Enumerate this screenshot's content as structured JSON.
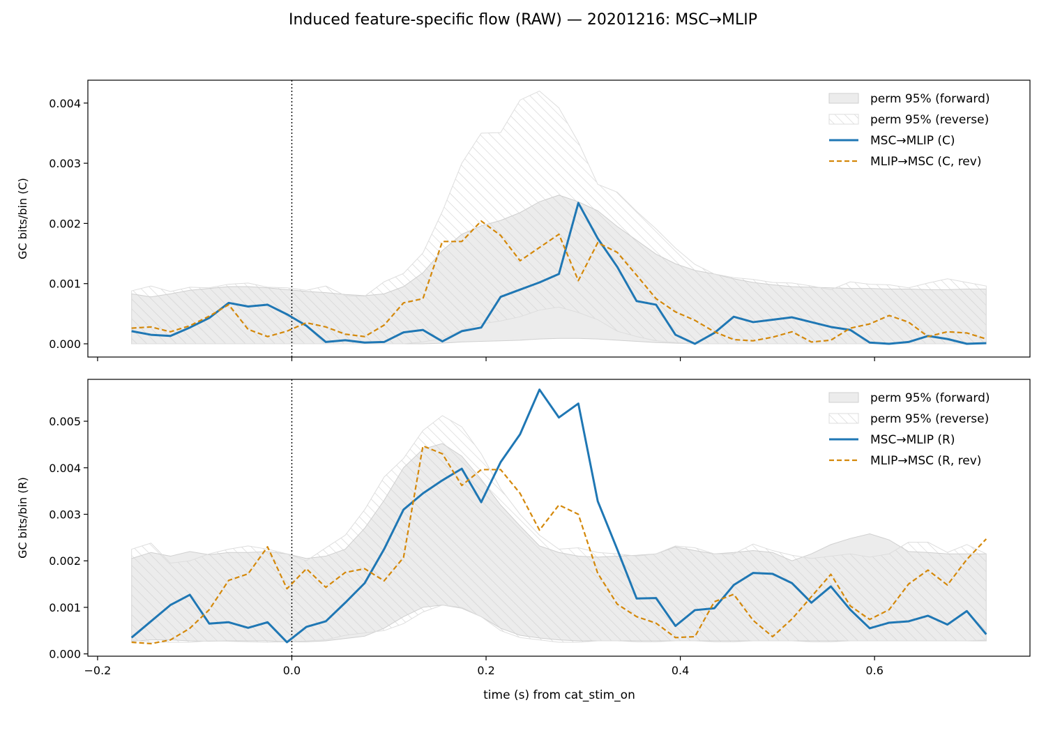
{
  "figure": {
    "title": "Induced feature-specific flow (RAW) — 20201216: MSC→MLIP",
    "xlabel": "time (s) from cat_stim_on"
  },
  "colors": {
    "forward": "#1f77b4",
    "reverse": "#d4880a",
    "band_fill": "#ececec",
    "band_edge": "#cfcfcf",
    "hatch": "#cfcfcf",
    "axis": "#000000"
  },
  "chart_data": [
    {
      "type": "line",
      "ylabel": "GC bits/bin (C)",
      "xlim": [
        -0.21,
        0.76
      ],
      "ylim": [
        -0.00022,
        0.00438
      ],
      "xticks": [
        -0.2,
        0.0,
        0.2,
        0.4,
        0.6
      ],
      "xtick_labels": [],
      "yticks": [
        0.0,
        0.001,
        0.002,
        0.003,
        0.004
      ],
      "ytick_labels": [
        "0.000",
        "0.001",
        "0.002",
        "0.003",
        "0.004"
      ],
      "vline_x": 0.0,
      "legend": [
        "perm 95% (forward)",
        "perm 95% (reverse)",
        "MSC→MLIP (C)",
        "MLIP→MSC (C, rev)"
      ],
      "legend_position": "top-right",
      "x": [
        -0.165,
        -0.145,
        -0.125,
        -0.105,
        -0.085,
        -0.065,
        -0.045,
        -0.025,
        -0.005,
        0.015,
        0.035,
        0.055,
        0.075,
        0.095,
        0.115,
        0.135,
        0.155,
        0.175,
        0.195,
        0.215,
        0.235,
        0.255,
        0.275,
        0.295,
        0.315,
        0.335,
        0.355,
        0.375,
        0.395,
        0.415,
        0.435,
        0.455,
        0.475,
        0.495,
        0.515,
        0.535,
        0.555,
        0.575,
        0.595,
        0.615,
        0.635,
        0.655,
        0.675,
        0.695,
        0.715
      ],
      "band_forward": {
        "lower": [
          0,
          0,
          0,
          0,
          0,
          0,
          0,
          0,
          0,
          0,
          0,
          0,
          0,
          0,
          0,
          0,
          1e-05,
          3e-05,
          4e-05,
          5e-05,
          6e-05,
          8e-05,
          9e-05,
          9e-05,
          8e-05,
          6e-05,
          4e-05,
          2e-05,
          1e-05,
          0,
          0,
          0,
          0,
          0,
          0,
          0,
          0,
          0,
          0,
          0,
          0,
          0,
          0,
          0,
          0
        ],
        "upper": [
          0.00083,
          0.00078,
          0.00083,
          0.00089,
          0.00092,
          0.00095,
          0.00095,
          0.00093,
          0.0009,
          0.00087,
          0.00085,
          0.00082,
          0.0008,
          0.00083,
          0.00095,
          0.00118,
          0.00155,
          0.00182,
          0.00196,
          0.00205,
          0.00218,
          0.00236,
          0.00247,
          0.00236,
          0.00221,
          0.00195,
          0.00172,
          0.00149,
          0.00133,
          0.00122,
          0.00116,
          0.00108,
          0.00102,
          0.00098,
          0.00095,
          0.00094,
          0.00093,
          0.00092,
          0.00092,
          0.00091,
          0.00091,
          0.0009,
          0.0009,
          0.00091,
          0.00091
        ]
      },
      "band_reverse": {
        "lower": [
          0,
          0,
          0,
          0,
          0,
          0,
          0,
          0,
          0,
          0,
          0,
          0,
          0,
          0,
          0,
          3e-05,
          9e-05,
          0.00023,
          0.00033,
          0.00038,
          0.00045,
          0.00056,
          0.00061,
          0.00052,
          0.0004,
          0.00021,
          0.00012,
          5e-05,
          2e-05,
          0,
          0,
          0,
          0,
          0,
          0,
          0,
          0,
          0,
          0,
          0,
          0,
          0,
          0,
          0,
          0
        ],
        "upper": [
          0.00088,
          0.00096,
          0.00087,
          0.00094,
          0.00093,
          0.00099,
          0.00101,
          0.00094,
          0.00093,
          0.00089,
          0.00096,
          0.0008,
          0.00079,
          0.00103,
          0.00117,
          0.00151,
          0.0022,
          0.003,
          0.0035,
          0.00351,
          0.00405,
          0.0042,
          0.00392,
          0.00335,
          0.00265,
          0.00252,
          0.0022,
          0.00191,
          0.00159,
          0.00132,
          0.00116,
          0.0011,
          0.00107,
          0.00102,
          0.00101,
          0.00096,
          0.0009,
          0.00103,
          0.00099,
          0.00098,
          0.00093,
          0.00101,
          0.00108,
          0.00102,
          0.00096
        ]
      },
      "series": [
        {
          "name": "MSC→MLIP (C)",
          "style": "solid",
          "values": [
            0.00021,
            0.00015,
            0.00013,
            0.00027,
            0.00043,
            0.00068,
            0.00062,
            0.00065,
            0.00049,
            0.0003,
            3e-05,
            6e-05,
            2e-05,
            3e-05,
            0.00019,
            0.00023,
            4e-05,
            0.00021,
            0.00027,
            0.00078,
            0.0009,
            0.00102,
            0.00116,
            0.00234,
            0.00175,
            0.00128,
            0.00071,
            0.00065,
            0.00015,
            0.0,
            0.00018,
            0.00045,
            0.00036,
            0.0004,
            0.00044,
            0.00036,
            0.00028,
            0.00023,
            2e-05,
            0.0,
            3e-05,
            0.00013,
            8e-05,
            0.0,
            1e-05
          ]
        },
        {
          "name": "MLIP→MSC (C, rev)",
          "style": "dashed",
          "values": [
            0.00026,
            0.00028,
            0.0002,
            0.0003,
            0.00046,
            0.00065,
            0.00024,
            0.00012,
            0.00021,
            0.00035,
            0.00028,
            0.00016,
            0.00012,
            0.00031,
            0.00068,
            0.00075,
            0.0017,
            0.0017,
            0.00204,
            0.0018,
            0.00138,
            0.0016,
            0.00182,
            0.00105,
            0.00168,
            0.00152,
            0.00114,
            0.00075,
            0.00053,
            0.00039,
            0.0002,
            7e-05,
            5e-05,
            0.00011,
            0.0002,
            3e-05,
            6e-05,
            0.00026,
            0.00033,
            0.00047,
            0.00036,
            0.00012,
            0.0002,
            0.00018,
            8e-05
          ]
        }
      ]
    },
    {
      "type": "line",
      "ylabel": "GC bits/bin (R)",
      "xlim": [
        -0.21,
        0.76
      ],
      "ylim": [
        -5e-05,
        0.0059
      ],
      "xticks": [
        -0.2,
        0.0,
        0.2,
        0.4,
        0.6
      ],
      "xtick_labels": [
        "−0.2",
        "0.0",
        "0.2",
        "0.4",
        "0.6"
      ],
      "yticks": [
        0.0,
        0.001,
        0.002,
        0.003,
        0.004,
        0.005
      ],
      "ytick_labels": [
        "0.000",
        "0.001",
        "0.002",
        "0.003",
        "0.004",
        "0.005"
      ],
      "vline_x": 0.0,
      "legend": [
        "perm 95% (forward)",
        "perm 95% (reverse)",
        "MSC→MLIP (R)",
        "MLIP→MSC (R, rev)"
      ],
      "legend_position": "top-right",
      "x": [
        -0.165,
        -0.145,
        -0.125,
        -0.105,
        -0.085,
        -0.065,
        -0.045,
        -0.025,
        -0.005,
        0.015,
        0.035,
        0.055,
        0.075,
        0.095,
        0.115,
        0.135,
        0.155,
        0.175,
        0.195,
        0.215,
        0.235,
        0.255,
        0.275,
        0.295,
        0.315,
        0.335,
        0.355,
        0.375,
        0.395,
        0.415,
        0.435,
        0.455,
        0.475,
        0.495,
        0.515,
        0.535,
        0.555,
        0.575,
        0.595,
        0.615,
        0.635,
        0.655,
        0.675,
        0.695,
        0.715
      ],
      "band_forward": {
        "lower": [
          0.00027,
          0.0003,
          0.0003,
          0.00028,
          0.00027,
          0.00028,
          0.00028,
          0.00028,
          0.00026,
          0.00026,
          0.00028,
          0.00033,
          0.00038,
          0.00055,
          0.0008,
          0.001,
          0.00105,
          0.00098,
          0.0008,
          0.00055,
          0.0004,
          0.00034,
          0.0003,
          0.00028,
          0.00028,
          0.00028,
          0.00028,
          0.00028,
          0.00028,
          0.00028,
          0.00028,
          0.00028,
          0.00028,
          0.00028,
          0.00028,
          0.00028,
          0.00028,
          0.00028,
          0.00028,
          0.00028,
          0.00028,
          0.00028,
          0.00028,
          0.00028,
          0.00028
        ],
        "upper": [
          0.00205,
          0.00218,
          0.0021,
          0.0022,
          0.00213,
          0.00218,
          0.00218,
          0.0022,
          0.00215,
          0.00205,
          0.0021,
          0.00225,
          0.0027,
          0.0033,
          0.004,
          0.0044,
          0.00452,
          0.00425,
          0.00375,
          0.0032,
          0.00275,
          0.00232,
          0.00218,
          0.0021,
          0.00208,
          0.0021,
          0.00212,
          0.00215,
          0.0023,
          0.00222,
          0.00215,
          0.00218,
          0.00222,
          0.00218,
          0.002,
          0.00215,
          0.00235,
          0.00248,
          0.00258,
          0.00245,
          0.0022,
          0.00218,
          0.00215,
          0.00215,
          0.00215
        ]
      },
      "band_reverse": {
        "lower": [
          0.0003,
          0.00025,
          0.00025,
          0.00025,
          0.00028,
          0.00027,
          0.00026,
          0.00025,
          0.00026,
          0.00028,
          0.0003,
          0.0004,
          0.00045,
          0.0005,
          0.00065,
          0.0009,
          0.00105,
          0.001,
          0.0008,
          0.0005,
          0.00035,
          0.0003,
          0.00025,
          0.00025,
          0.00028,
          0.00028,
          0.00026,
          0.00026,
          0.00028,
          0.00028,
          0.00026,
          0.00026,
          0.00028,
          0.00028,
          0.00028,
          0.00026,
          0.00026,
          0.00028,
          0.00028,
          0.00028,
          0.00028,
          0.00028,
          0.00028,
          0.00028,
          0.0003
        ],
        "upper": [
          0.00225,
          0.00238,
          0.00195,
          0.002,
          0.00215,
          0.00225,
          0.00232,
          0.00225,
          0.00215,
          0.002,
          0.00228,
          0.00255,
          0.0031,
          0.0038,
          0.0042,
          0.0048,
          0.00512,
          0.00488,
          0.0043,
          0.00355,
          0.003,
          0.00255,
          0.00225,
          0.00228,
          0.00218,
          0.00215,
          0.0021,
          0.00215,
          0.00232,
          0.00228,
          0.00215,
          0.00215,
          0.00236,
          0.00222,
          0.00212,
          0.00205,
          0.0021,
          0.00215,
          0.00208,
          0.00215,
          0.0024,
          0.0024,
          0.00218,
          0.00235,
          0.00215
        ]
      },
      "series": [
        {
          "name": "MSC→MLIP (R)",
          "style": "solid",
          "values": [
            0.00035,
            0.0007,
            0.00105,
            0.00127,
            0.00065,
            0.00068,
            0.00056,
            0.00068,
            0.00025,
            0.00058,
            0.0007,
            0.0011,
            0.00152,
            0.00225,
            0.0031,
            0.00345,
            0.00373,
            0.00398,
            0.00326,
            0.00412,
            0.00472,
            0.00568,
            0.00508,
            0.00538,
            0.00328,
            0.00225,
            0.00119,
            0.0012,
            0.0006,
            0.00094,
            0.00098,
            0.00148,
            0.00174,
            0.00172,
            0.00152,
            0.0011,
            0.00145,
            0.00095,
            0.00055,
            0.00067,
            0.0007,
            0.00082,
            0.00063,
            0.00092,
            0.00042
          ]
        },
        {
          "name": "MLIP→MSC (R, rev)",
          "style": "dashed",
          "values": [
            0.00025,
            0.00022,
            0.0003,
            0.00055,
            0.00095,
            0.00158,
            0.00172,
            0.0023,
            0.0014,
            0.00183,
            0.00143,
            0.00175,
            0.00183,
            0.00157,
            0.00207,
            0.00447,
            0.0043,
            0.00362,
            0.00396,
            0.00396,
            0.00345,
            0.00266,
            0.0032,
            0.003,
            0.00173,
            0.00107,
            0.0008,
            0.00066,
            0.00035,
            0.00037,
            0.00112,
            0.00128,
            0.00072,
            0.00037,
            0.00075,
            0.00123,
            0.00171,
            0.00103,
            0.00074,
            0.00095,
            0.0015,
            0.0018,
            0.00148,
            0.00203,
            0.00247
          ]
        }
      ]
    }
  ]
}
